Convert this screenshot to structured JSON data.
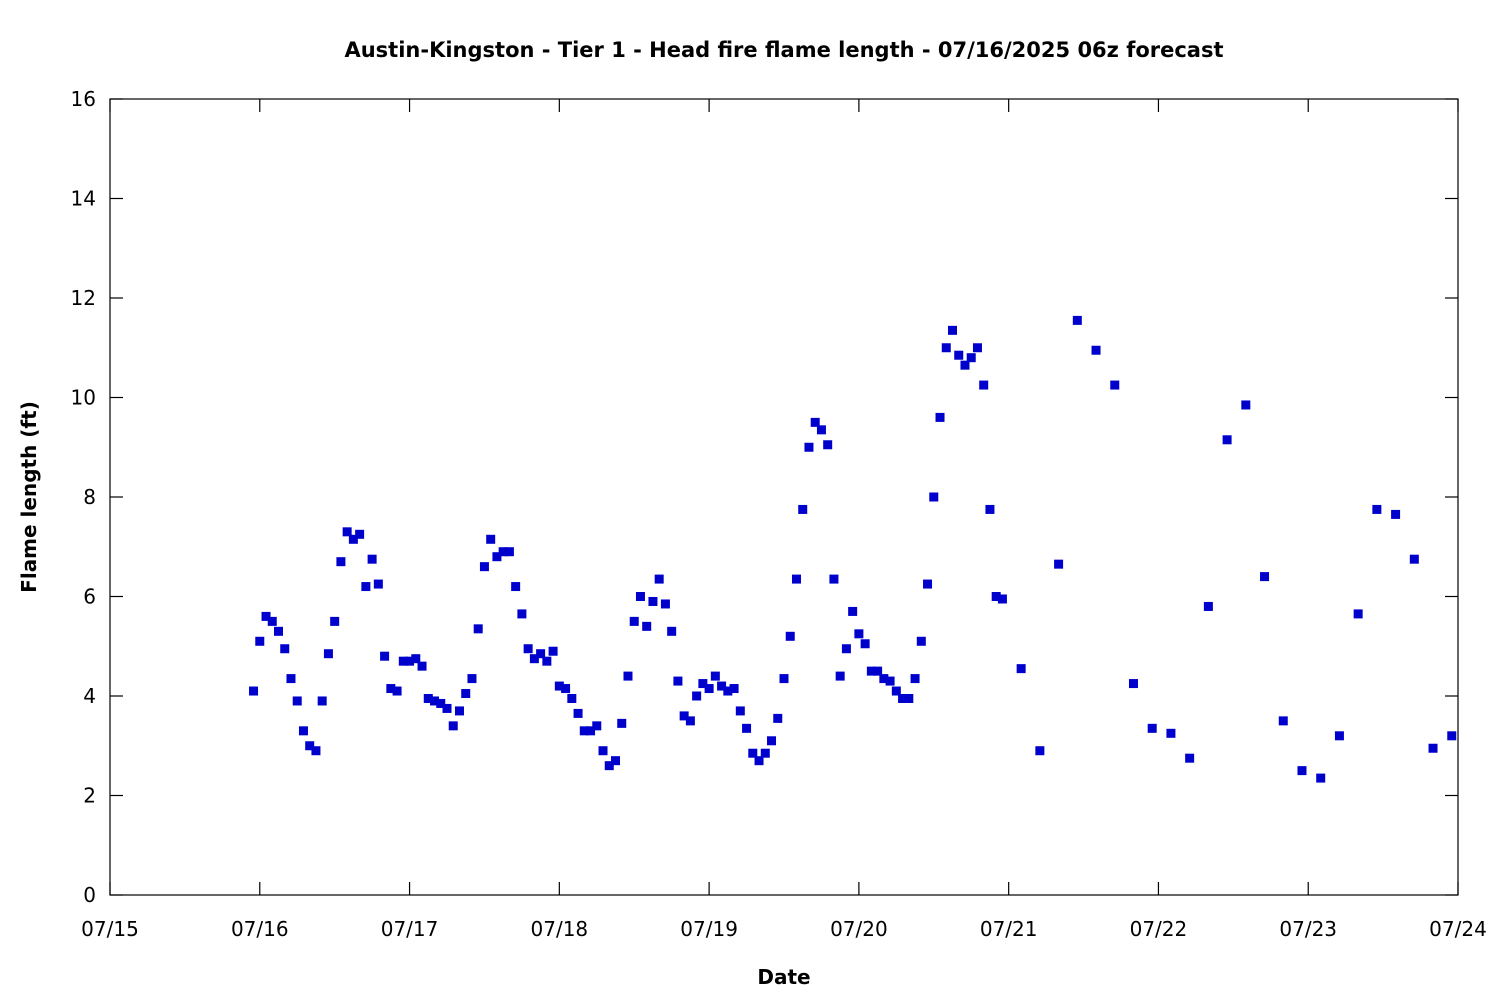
{
  "chart_data": {
    "type": "scatter",
    "title": "Austin-Kingston - Tier 1 - Head fire flame length - 07/16/2025 06z forecast",
    "xlabel": "Date",
    "ylabel": "Flame length (ft)",
    "xlim": [
      "07/15",
      "07/24"
    ],
    "ylim": [
      0,
      16
    ],
    "x_tick_labels": [
      "07/15",
      "07/16",
      "07/17",
      "07/18",
      "07/19",
      "07/20",
      "07/21",
      "07/22",
      "07/23",
      "07/24"
    ],
    "y_tick_labels": [
      "0",
      "2",
      "4",
      "6",
      "8",
      "10",
      "12",
      "14",
      "16"
    ],
    "y_ticks": [
      0,
      2,
      4,
      6,
      8,
      10,
      12,
      14,
      16
    ],
    "grid": false,
    "legend": "none",
    "marker_color": "#0000cc",
    "series": [
      {
        "points": [
          [
            "07/15 23:00",
            4.1
          ],
          [
            "07/16 00:00",
            5.1
          ],
          [
            "07/16 01:00",
            5.6
          ],
          [
            "07/16 02:00",
            5.5
          ],
          [
            "07/16 03:00",
            5.3
          ],
          [
            "07/16 04:00",
            4.95
          ],
          [
            "07/16 05:00",
            4.35
          ],
          [
            "07/16 06:00",
            3.9
          ],
          [
            "07/16 07:00",
            3.3
          ],
          [
            "07/16 08:00",
            3.0
          ],
          [
            "07/16 09:00",
            2.9
          ],
          [
            "07/16 10:00",
            3.9
          ],
          [
            "07/16 11:00",
            4.85
          ],
          [
            "07/16 12:00",
            5.5
          ],
          [
            "07/16 13:00",
            6.7
          ],
          [
            "07/16 14:00",
            7.3
          ],
          [
            "07/16 15:00",
            7.15
          ],
          [
            "07/16 16:00",
            7.25
          ],
          [
            "07/16 17:00",
            6.2
          ],
          [
            "07/16 18:00",
            6.75
          ],
          [
            "07/16 19:00",
            6.25
          ],
          [
            "07/16 20:00",
            4.8
          ],
          [
            "07/16 21:00",
            4.15
          ],
          [
            "07/16 22:00",
            4.1
          ],
          [
            "07/16 23:00",
            4.7
          ],
          [
            "07/17 00:00",
            4.7
          ],
          [
            "07/17 01:00",
            4.75
          ],
          [
            "07/17 02:00",
            4.6
          ],
          [
            "07/17 03:00",
            3.95
          ],
          [
            "07/17 04:00",
            3.9
          ],
          [
            "07/17 05:00",
            3.85
          ],
          [
            "07/17 06:00",
            3.75
          ],
          [
            "07/17 07:00",
            3.4
          ],
          [
            "07/17 08:00",
            3.7
          ],
          [
            "07/17 09:00",
            4.05
          ],
          [
            "07/17 10:00",
            4.35
          ],
          [
            "07/17 11:00",
            5.35
          ],
          [
            "07/17 12:00",
            6.6
          ],
          [
            "07/17 13:00",
            7.15
          ],
          [
            "07/17 14:00",
            6.8
          ],
          [
            "07/17 15:00",
            6.9
          ],
          [
            "07/17 16:00",
            6.9
          ],
          [
            "07/17 17:00",
            6.2
          ],
          [
            "07/17 18:00",
            5.65
          ],
          [
            "07/17 19:00",
            4.95
          ],
          [
            "07/17 20:00",
            4.75
          ],
          [
            "07/17 21:00",
            4.85
          ],
          [
            "07/17 22:00",
            4.7
          ],
          [
            "07/17 23:00",
            4.9
          ],
          [
            "07/18 00:00",
            4.2
          ],
          [
            "07/18 01:00",
            4.15
          ],
          [
            "07/18 02:00",
            3.95
          ],
          [
            "07/18 03:00",
            3.65
          ],
          [
            "07/18 04:00",
            3.3
          ],
          [
            "07/18 05:00",
            3.3
          ],
          [
            "07/18 06:00",
            3.4
          ],
          [
            "07/18 07:00",
            2.9
          ],
          [
            "07/18 08:00",
            2.6
          ],
          [
            "07/18 09:00",
            2.7
          ],
          [
            "07/18 10:00",
            3.45
          ],
          [
            "07/18 11:00",
            4.4
          ],
          [
            "07/18 12:00",
            5.5
          ],
          [
            "07/18 13:00",
            6.0
          ],
          [
            "07/18 14:00",
            5.4
          ],
          [
            "07/18 15:00",
            5.9
          ],
          [
            "07/18 16:00",
            6.35
          ],
          [
            "07/18 17:00",
            5.85
          ],
          [
            "07/18 18:00",
            5.3
          ],
          [
            "07/18 19:00",
            4.3
          ],
          [
            "07/18 20:00",
            3.6
          ],
          [
            "07/18 21:00",
            3.5
          ],
          [
            "07/18 22:00",
            4.0
          ],
          [
            "07/18 23:00",
            4.25
          ],
          [
            "07/19 00:00",
            4.15
          ],
          [
            "07/19 01:00",
            4.4
          ],
          [
            "07/19 02:00",
            4.2
          ],
          [
            "07/19 03:00",
            4.1
          ],
          [
            "07/19 04:00",
            4.15
          ],
          [
            "07/19 05:00",
            3.7
          ],
          [
            "07/19 06:00",
            3.35
          ],
          [
            "07/19 07:00",
            2.85
          ],
          [
            "07/19 08:00",
            2.7
          ],
          [
            "07/19 09:00",
            2.85
          ],
          [
            "07/19 10:00",
            3.1
          ],
          [
            "07/19 11:00",
            3.55
          ],
          [
            "07/19 12:00",
            4.35
          ],
          [
            "07/19 13:00",
            5.2
          ],
          [
            "07/19 14:00",
            6.35
          ],
          [
            "07/19 15:00",
            7.75
          ],
          [
            "07/19 16:00",
            9.0
          ],
          [
            "07/19 17:00",
            9.5
          ],
          [
            "07/19 18:00",
            9.35
          ],
          [
            "07/19 19:00",
            9.05
          ],
          [
            "07/19 20:00",
            6.35
          ],
          [
            "07/19 21:00",
            4.4
          ],
          [
            "07/19 22:00",
            4.95
          ],
          [
            "07/19 23:00",
            5.7
          ],
          [
            "07/20 00:00",
            5.25
          ],
          [
            "07/20 01:00",
            5.05
          ],
          [
            "07/20 02:00",
            4.5
          ],
          [
            "07/20 03:00",
            4.5
          ],
          [
            "07/20 04:00",
            4.35
          ],
          [
            "07/20 05:00",
            4.3
          ],
          [
            "07/20 06:00",
            4.1
          ],
          [
            "07/20 07:00",
            3.95
          ],
          [
            "07/20 08:00",
            3.95
          ],
          [
            "07/20 09:00",
            4.35
          ],
          [
            "07/20 10:00",
            5.1
          ],
          [
            "07/20 11:00",
            6.25
          ],
          [
            "07/20 12:00",
            8.0
          ],
          [
            "07/20 13:00",
            9.6
          ],
          [
            "07/20 14:00",
            11.0
          ],
          [
            "07/20 15:00",
            11.35
          ],
          [
            "07/20 16:00",
            10.85
          ],
          [
            "07/20 17:00",
            10.65
          ],
          [
            "07/20 18:00",
            10.8
          ],
          [
            "07/20 19:00",
            11.0
          ],
          [
            "07/20 20:00",
            10.25
          ],
          [
            "07/20 21:00",
            7.75
          ],
          [
            "07/20 22:00",
            6.0
          ],
          [
            "07/20 23:00",
            5.95
          ],
          [
            "07/21 02:00",
            4.55
          ],
          [
            "07/21 05:00",
            2.9
          ],
          [
            "07/21 08:00",
            6.65
          ],
          [
            "07/21 11:00",
            11.55
          ],
          [
            "07/21 14:00",
            10.95
          ],
          [
            "07/21 17:00",
            10.25
          ],
          [
            "07/21 20:00",
            4.25
          ],
          [
            "07/21 23:00",
            3.35
          ],
          [
            "07/22 02:00",
            3.25
          ],
          [
            "07/22 05:00",
            2.75
          ],
          [
            "07/22 08:00",
            5.8
          ],
          [
            "07/22 11:00",
            9.15
          ],
          [
            "07/22 14:00",
            9.85
          ],
          [
            "07/22 17:00",
            6.4
          ],
          [
            "07/22 20:00",
            3.5
          ],
          [
            "07/22 23:00",
            2.5
          ],
          [
            "07/23 02:00",
            2.35
          ],
          [
            "07/23 05:00",
            3.2
          ],
          [
            "07/23 08:00",
            5.65
          ],
          [
            "07/23 11:00",
            7.75
          ],
          [
            "07/23 14:00",
            7.65
          ],
          [
            "07/23 17:00",
            6.75
          ],
          [
            "07/23 20:00",
            2.95
          ],
          [
            "07/23 23:00",
            3.2
          ]
        ]
      }
    ]
  }
}
